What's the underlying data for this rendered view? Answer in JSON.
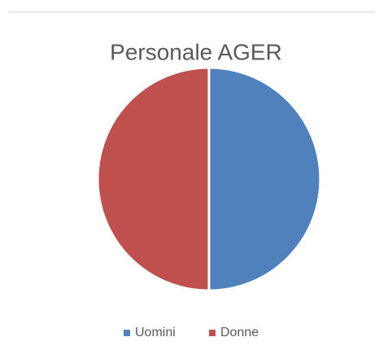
{
  "chart_data": {
    "type": "pie",
    "title": "Personale AGER",
    "categories": [
      "Uomini",
      "Donne"
    ],
    "values": [
      50,
      50
    ],
    "colors": [
      "#4f81bd",
      "#c0504d"
    ],
    "legend": "bottom"
  }
}
